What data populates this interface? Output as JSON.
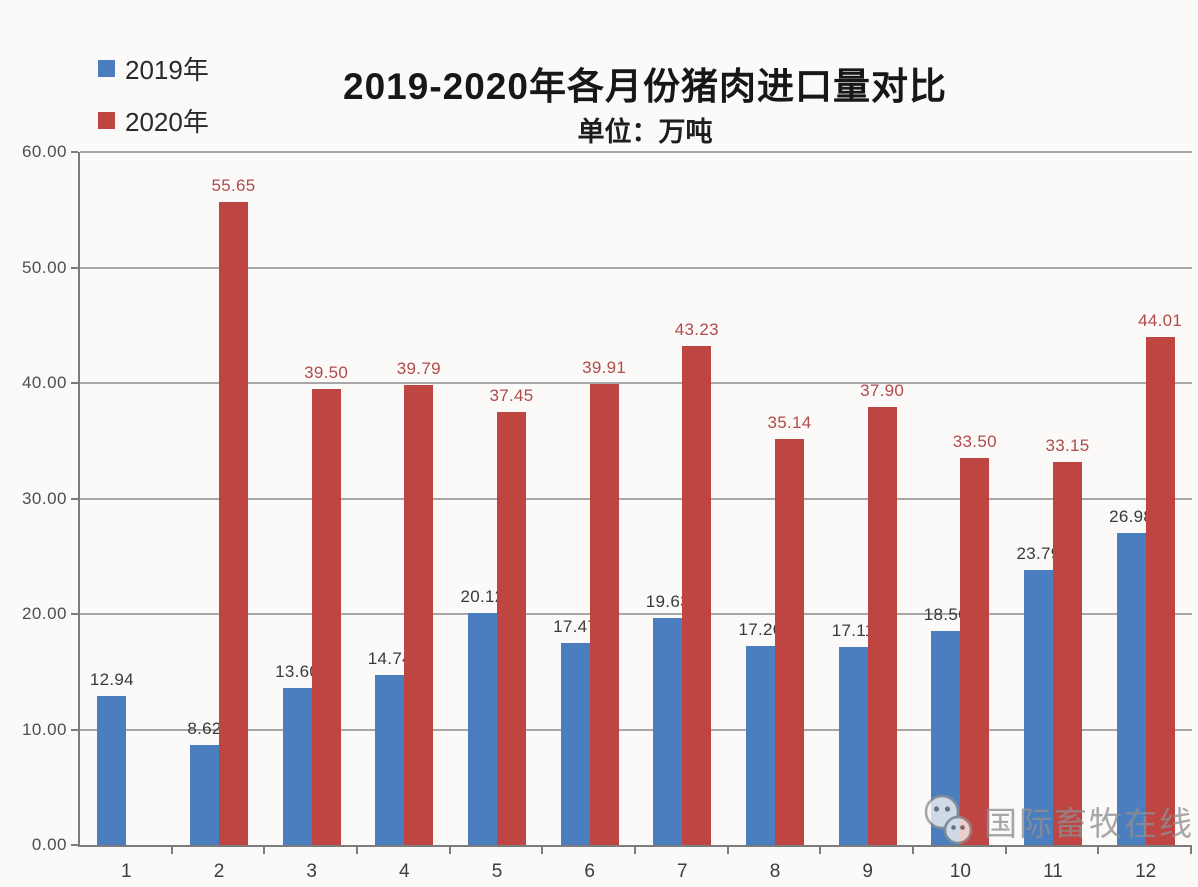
{
  "chart": {
    "title": "2019-2020年各月份猪肉进口量对比",
    "subtitle": "单位：万吨"
  },
  "legend": {
    "items": [
      {
        "label": "2019年",
        "color": "#4a7ebf"
      },
      {
        "label": "2020年",
        "color": "#bf4543"
      }
    ]
  },
  "watermark": {
    "icon": "wechat-icon",
    "text": "国际畜牧在线"
  },
  "chart_data": {
    "type": "bar",
    "categories": [
      "1",
      "2",
      "3",
      "4",
      "5",
      "6",
      "7",
      "8",
      "9",
      "10",
      "11",
      "12"
    ],
    "series": [
      {
        "name": "2019年",
        "color": "#4a7ebf",
        "label_color": "#3a3a3a",
        "values": [
          12.94,
          8.62,
          13.6,
          14.74,
          20.12,
          17.47,
          19.63,
          17.26,
          17.11,
          18.56,
          23.79,
          26.98
        ]
      },
      {
        "name": "2020年",
        "color": "#bf4543",
        "label_color": "#b04b4b",
        "values": [
          null,
          55.65,
          39.5,
          39.79,
          37.45,
          39.91,
          43.23,
          35.14,
          37.9,
          33.5,
          33.15,
          44.01
        ]
      }
    ],
    "y_ticks": [
      "60.00",
      "50.00",
      "40.00",
      "30.00",
      "20.00",
      "10.00",
      "0.00"
    ],
    "ylim": [
      0,
      60
    ],
    "grid": true,
    "legend_position": "top-left",
    "colors": {
      "grid": "#a7a7a7",
      "axis": "#7c7c7c"
    }
  }
}
